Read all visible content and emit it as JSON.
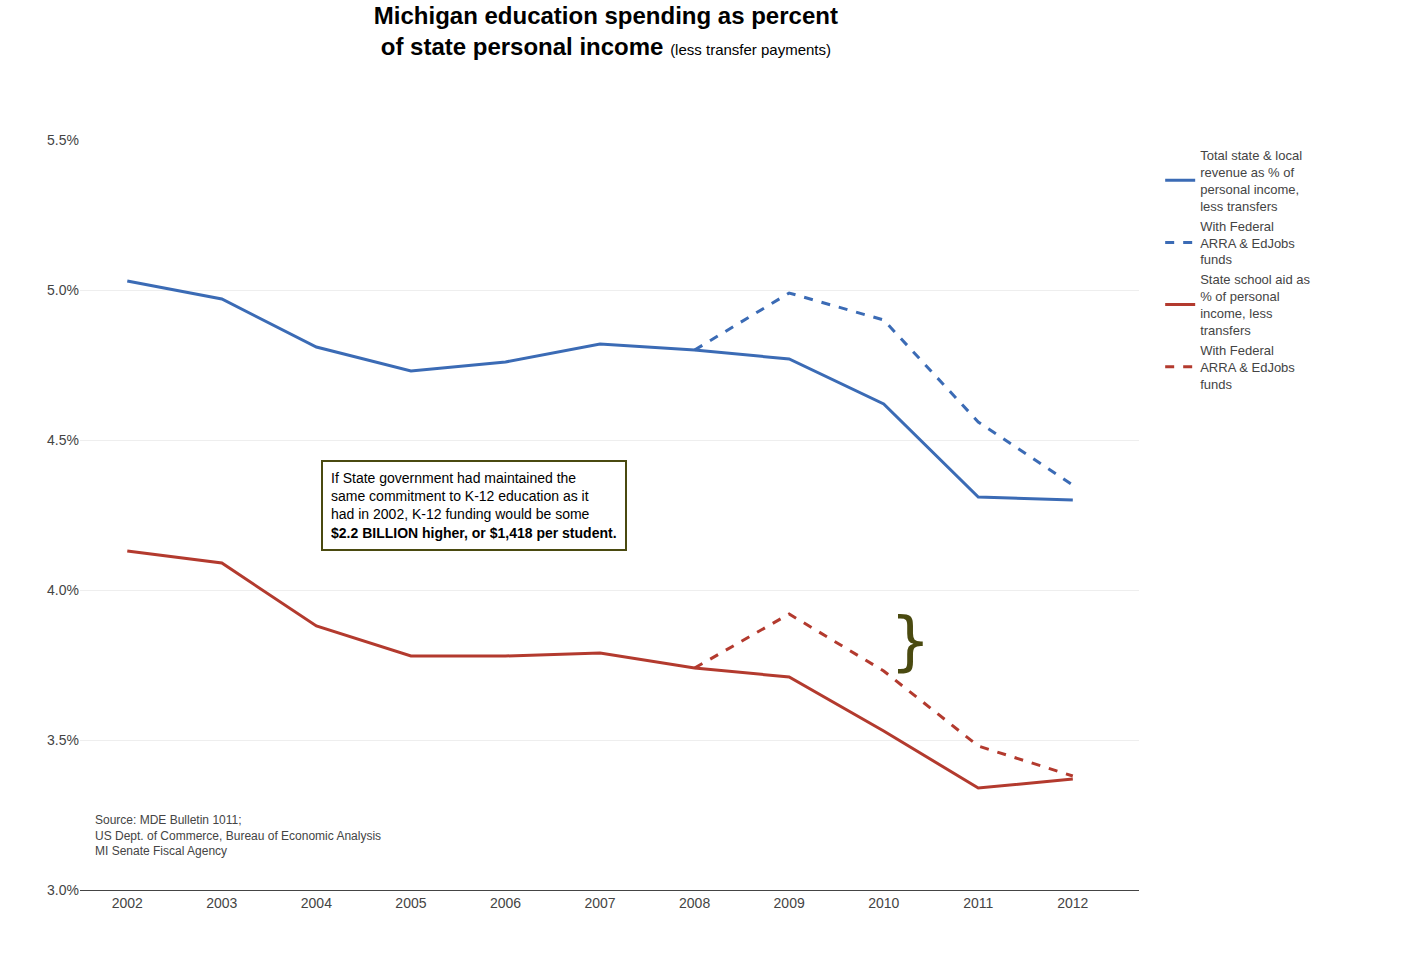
{
  "chart_data": {
    "type": "line",
    "title": "Michigan education spending as percent\nof state personal income",
    "subtitle": "(less transfer payments)",
    "x": [
      2002,
      2003,
      2004,
      2005,
      2006,
      2007,
      2008,
      2009,
      2010,
      2011,
      2012
    ],
    "series": [
      {
        "name": "Total state & local\nrevenue as % of\npersonal income,\nless transfers",
        "color": "#3B6BB5",
        "line_style": "solid",
        "values": [
          5.03,
          4.97,
          4.81,
          4.73,
          4.76,
          4.82,
          4.8,
          4.77,
          4.62,
          4.31,
          4.3
        ]
      },
      {
        "name": "With Federal\nARRA & EdJobs\nfunds",
        "color": "#3B6BB5",
        "line_style": "dashed",
        "values": [
          null,
          null,
          null,
          null,
          null,
          null,
          4.8,
          4.99,
          4.9,
          4.56,
          4.35
        ]
      },
      {
        "name": "State school aid as\n% of personal\nincome, less\ntransfers",
        "color": "#B33A2E",
        "line_style": "solid",
        "values": [
          4.13,
          4.09,
          3.88,
          3.78,
          3.78,
          3.79,
          3.74,
          3.71,
          3.53,
          3.34,
          3.37
        ]
      },
      {
        "name": "With Federal\nARRA & EdJobs\nfunds",
        "color": "#B33A2E",
        "line_style": "dashed",
        "values": [
          null,
          null,
          null,
          null,
          null,
          null,
          3.74,
          3.92,
          3.73,
          3.48,
          3.38
        ]
      }
    ],
    "xlim": [
      2001.5,
      2012.7
    ],
    "xticks": [
      2002,
      2003,
      2004,
      2005,
      2006,
      2007,
      2008,
      2009,
      2010,
      2011,
      2012
    ],
    "ylim": [
      3.0,
      5.5
    ],
    "yticks": [
      {
        "value": 3.0,
        "label": "3.0%"
      },
      {
        "value": 3.5,
        "label": "3.5%"
      },
      {
        "value": 4.0,
        "label": "4.0%"
      },
      {
        "value": 4.5,
        "label": "4.5%"
      },
      {
        "value": 5.0,
        "label": "5.0%"
      },
      {
        "value": 5.5,
        "label": "5.5%"
      }
    ],
    "grid": "y",
    "legend": "outside right",
    "annotations": [
      {
        "text": "If State government had maintained the\nsame commitment to K-12 education as it\nhad in 2002, K-12 funding would be some",
        "emphasis": "$2.2 BILLION higher, or $1,418 per student.",
        "color": "#4A4A10"
      },
      {
        "text": "}",
        "color": "#4A4A10"
      }
    ],
    "source": "Source: MDE Bulletin 1011;\nUS Dept. of Commerce, Bureau of Economic Analysis\nMI Senate Fiscal Agency"
  }
}
